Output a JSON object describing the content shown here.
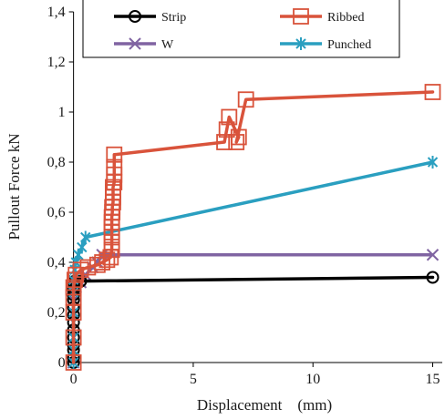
{
  "chart_data": {
    "type": "line",
    "xlabel": "Displacement    (mm)",
    "ylabel": "Pullout Force  kN",
    "xlim": [
      -0.1,
      15.4
    ],
    "ylim": [
      0,
      1.4
    ],
    "x_ticks": [
      0,
      5,
      10,
      15
    ],
    "x_tick_labels": [
      "0",
      "5",
      "10",
      "15"
    ],
    "y_ticks": [
      0,
      0.2,
      0.4,
      0.6,
      0.8,
      1.0,
      1.2,
      1.4
    ],
    "y_tick_labels": [
      "0",
      "0,2",
      "0,4",
      "0,6",
      "0,8",
      "1",
      "1,2",
      "1,4"
    ],
    "grid": false,
    "legend_position": "top",
    "series": [
      {
        "name": "Strip",
        "color": "#000000",
        "marker": "circle",
        "x": [
          0,
          0,
          0,
          0,
          0,
          0,
          0,
          0,
          0,
          0,
          0,
          0,
          0,
          0,
          0.02,
          0.05,
          0.1,
          0.3,
          15
        ],
        "y": [
          0,
          0.02,
          0.05,
          0.07,
          0.1,
          0.13,
          0.16,
          0.19,
          0.22,
          0.25,
          0.27,
          0.29,
          0.3,
          0.31,
          0.32,
          0.325,
          0.325,
          0.325,
          0.34
        ]
      },
      {
        "name": "Ribbed",
        "color": "#d9533b",
        "marker": "square",
        "x": [
          0,
          0,
          0,
          0,
          0,
          0.05,
          0.1,
          0.3,
          0.6,
          1.0,
          1.2,
          1.4,
          1.55,
          1.6,
          1.6,
          1.6,
          1.6,
          1.6,
          1.6,
          1.6,
          1.62,
          1.62,
          1.65,
          1.65,
          1.65,
          1.65,
          1.7,
          1.7,
          1.7,
          1.7,
          6.3,
          6.4,
          6.5,
          6.9,
          6.8,
          7.2,
          15
        ],
        "y": [
          0,
          0.1,
          0.2,
          0.26,
          0.3,
          0.33,
          0.35,
          0.37,
          0.38,
          0.39,
          0.4,
          0.41,
          0.42,
          0.45,
          0.48,
          0.5,
          0.52,
          0.54,
          0.56,
          0.58,
          0.6,
          0.62,
          0.64,
          0.66,
          0.68,
          0.7,
          0.72,
          0.75,
          0.78,
          0.83,
          0.88,
          0.93,
          0.98,
          0.9,
          0.88,
          1.05,
          1.08
        ]
      },
      {
        "name": "W",
        "color": "#8064a2",
        "marker": "x",
        "x": [
          0,
          0,
          0,
          0,
          0,
          0.1,
          0.3,
          0.5,
          0.8,
          1.0,
          1.2,
          15
        ],
        "y": [
          0,
          0.1,
          0.2,
          0.25,
          0.28,
          0.3,
          0.32,
          0.35,
          0.38,
          0.4,
          0.43,
          0.43
        ]
      },
      {
        "name": "Punched",
        "color": "#2a9fc0",
        "marker": "asterisk",
        "x": [
          0,
          0,
          0,
          0,
          0,
          0,
          0.05,
          0.1,
          0.2,
          0.35,
          0.5,
          15
        ],
        "y": [
          0,
          0.05,
          0.1,
          0.2,
          0.28,
          0.33,
          0.37,
          0.4,
          0.43,
          0.46,
          0.5,
          0.8
        ]
      }
    ]
  }
}
